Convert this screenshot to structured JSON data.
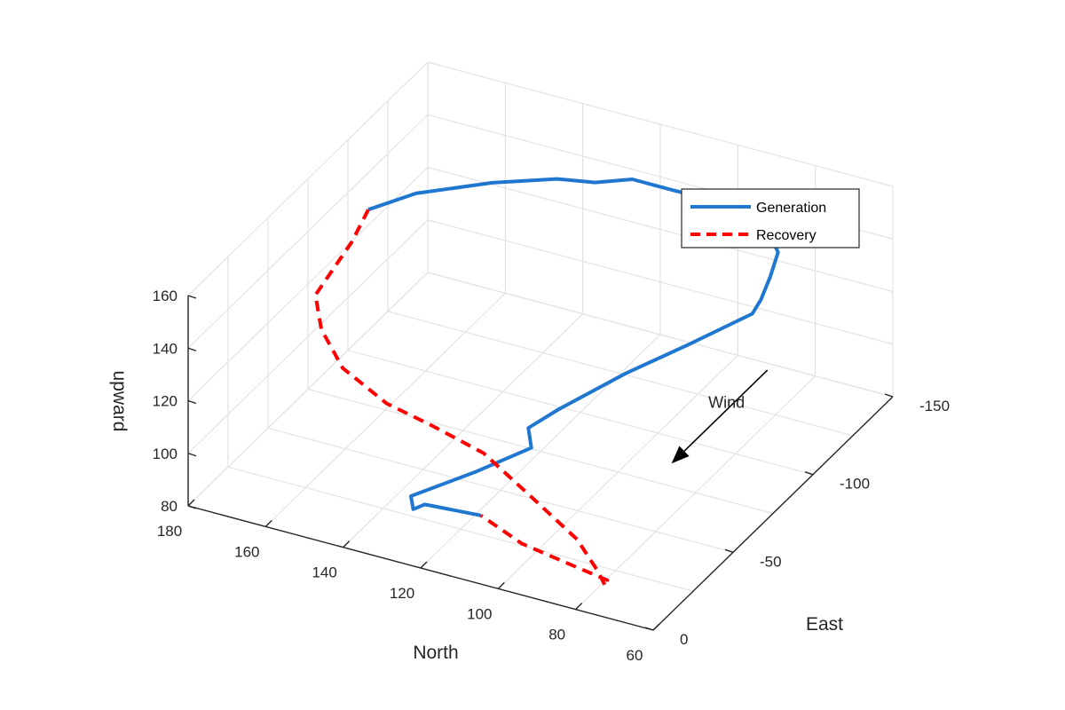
{
  "chart_data": {
    "type": "line",
    "projection": "3d",
    "xlabel": "North",
    "ylabel": "East",
    "zlabel": "upward",
    "xlim": [
      60,
      180
    ],
    "ylim": [
      -150,
      0
    ],
    "zlim": [
      80,
      160
    ],
    "x_ticks": [
      "60",
      "80",
      "100",
      "120",
      "140",
      "160",
      "180"
    ],
    "y_ticks": [
      "0",
      "-50",
      "-100",
      "-150"
    ],
    "z_ticks": [
      "80",
      "100",
      "120",
      "140",
      "160"
    ],
    "grid": true,
    "legend_position": "top-right",
    "colors": {
      "generation": "#1f77d0",
      "recovery": "#ff0000",
      "axis": "#262626",
      "grid": "#e3e3e3"
    },
    "series": [
      {
        "name": "Generation",
        "style": "solid",
        "points": [
          [
            116,
            -28,
            85
          ],
          [
            128,
            -22,
            88
          ],
          [
            131,
            -22,
            85
          ],
          [
            132,
            -23,
            89
          ],
          [
            120,
            -35,
            96
          ],
          [
            110,
            -45,
            103
          ],
          [
            112,
            -48,
            108
          ],
          [
            107,
            -55,
            113
          ],
          [
            96,
            -70,
            122
          ],
          [
            85,
            -82,
            130
          ],
          [
            74,
            -96,
            138
          ],
          [
            73,
            -99,
            142
          ],
          [
            71,
            -100,
            151
          ],
          [
            69,
            -100,
            161
          ],
          [
            71,
            -99,
            168
          ],
          [
            75,
            -93,
            177
          ],
          [
            87,
            -88,
            183
          ],
          [
            95,
            -84,
            186
          ],
          [
            100,
            -84,
            186
          ],
          [
            108,
            -80,
            184
          ],
          [
            117,
            -78,
            183
          ],
          [
            132,
            -74,
            178
          ],
          [
            148,
            -65,
            173
          ],
          [
            157,
            -57,
            168
          ]
        ]
      },
      {
        "name": "Recovery",
        "style": "dashed",
        "points": [
          [
            157,
            -57,
            168
          ],
          [
            158,
            -49,
            160
          ],
          [
            162,
            -36,
            146
          ],
          [
            158,
            -30,
            138
          ],
          [
            150,
            -24,
            130
          ],
          [
            137,
            -20,
            124
          ],
          [
            125,
            -19,
            121
          ],
          [
            112,
            -20,
            115
          ],
          [
            99,
            -17,
            106
          ],
          [
            85,
            -13,
            97
          ],
          [
            78,
            -9,
            90
          ],
          [
            76,
            -9,
            85
          ],
          [
            78,
            -15,
            83
          ],
          [
            89,
            -18,
            83
          ],
          [
            103,
            -22,
            83
          ],
          [
            116,
            -28,
            85
          ]
        ]
      }
    ],
    "annotation": {
      "label": "Wind",
      "from": [
        80,
        -120,
        100
      ],
      "to": [
        80,
        -60,
        100
      ]
    }
  }
}
